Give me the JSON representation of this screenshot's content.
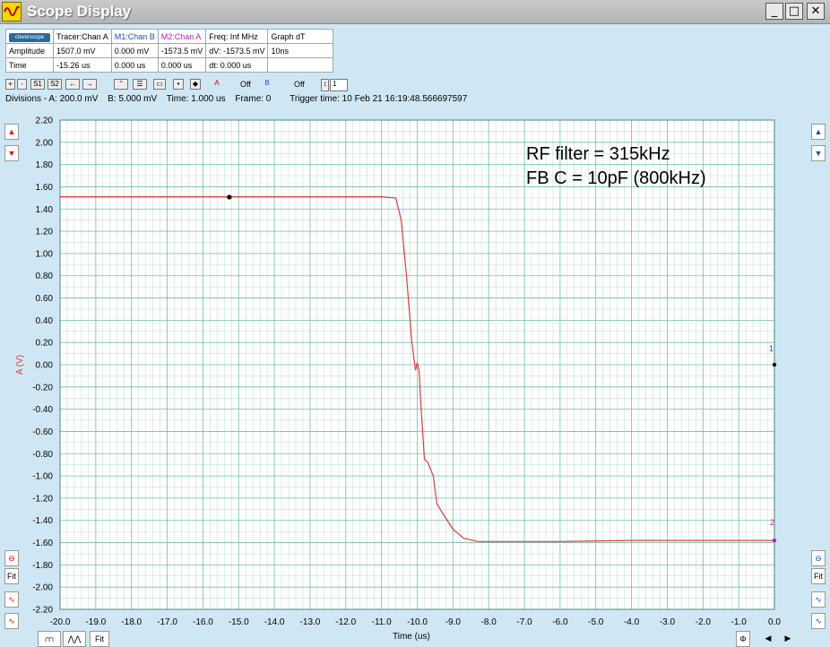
{
  "window": {
    "title": "Scope Display",
    "minimize_label": "_",
    "maximize_label": "□",
    "close_label": "✕"
  },
  "info_table": {
    "logo_text": "cleverscope",
    "headers": [
      "Tracer:Chan A",
      "M1:Chan B",
      "M2:Chan A",
      "Freq: Inf MHz",
      "Graph dT"
    ],
    "rows": [
      {
        "label": "Amplitude",
        "values": [
          "1507.0 mV",
          "0.000 mV",
          "-1573.5 mV",
          "dV: -1573.5 mV",
          "10ns"
        ]
      },
      {
        "label": "Time",
        "values": [
          "-15.26 us",
          "0.000 us",
          "0.000 us",
          "dt:  0.000 us",
          ""
        ]
      }
    ]
  },
  "toolbar": {
    "buttons": [
      "+",
      "-",
      "S1",
      "S2",
      "←",
      "→"
    ],
    "a_off_label": "Off",
    "b_off_label": "Off",
    "frame_field": "1"
  },
  "status": {
    "divisions": "Divisions -  A: 200.0 mV",
    "b": "B: 5.000 mV",
    "time": "Time: 1.000 us",
    "frame": "Frame: 0",
    "trigger": "Trigger time: 10 Feb 21 16:19:48.566697597"
  },
  "side": {
    "fit": "Fit"
  },
  "bottom": {
    "fit": "Fit"
  },
  "annotation": {
    "line1": "RF filter = 315kHz",
    "line2": "FB C = 10pF (800kHz)"
  },
  "markers": {
    "m1": "1",
    "m2": "2"
  },
  "colors": {
    "trace": "#e03a3a",
    "grid_major": "#6fbfa8",
    "grid_minor": "#b6dccf",
    "panel_bg": "#cfe7f5",
    "ylabel_color": "#e03a3a"
  },
  "chart_data": {
    "type": "line",
    "xlabel": "Time (us)",
    "ylabel": "A (V)",
    "xlim": [
      -20.0,
      0.0
    ],
    "ylim": [
      -2.2,
      2.2
    ],
    "xticks": [
      "-20.0",
      "-19.0",
      "-18.0",
      "-17.0",
      "-16.0",
      "-15.0",
      "-14.0",
      "-13.0",
      "-12.0",
      "-11.0",
      "-10.0",
      "-9.0",
      "-8.0",
      "-7.0",
      "-6.0",
      "-5.0",
      "-4.0",
      "-3.0",
      "-2.0",
      "-1.0",
      "0.0"
    ],
    "yticks": [
      "2.20",
      "2.00",
      "1.80",
      "1.60",
      "1.40",
      "1.20",
      "1.00",
      "0.80",
      "0.60",
      "0.40",
      "0.20",
      "0.00",
      "-0.20",
      "-0.40",
      "-0.60",
      "-0.80",
      "-1.00",
      "-1.20",
      "-1.40",
      "-1.60",
      "-1.80",
      "-2.00",
      "-2.20"
    ],
    "grid": true,
    "series": [
      {
        "x": [
          -20.0,
          -15.3,
          -11.0,
          -10.6,
          -10.45,
          -10.3,
          -10.15,
          -10.05,
          -10.0,
          -9.95,
          -9.9,
          -9.85,
          -9.8,
          -9.7,
          -9.55,
          -9.45,
          -9.3,
          -9.0,
          -8.7,
          -8.3,
          -7.5,
          -6.0,
          -4.0,
          -2.0,
          0.0
        ],
        "y": [
          1.51,
          1.51,
          1.51,
          1.5,
          1.3,
          0.8,
          0.2,
          -0.05,
          0.02,
          -0.05,
          -0.35,
          -0.6,
          -0.85,
          -0.88,
          -1.0,
          -1.25,
          -1.33,
          -1.48,
          -1.56,
          -1.59,
          -1.59,
          -1.59,
          -1.58,
          -1.58,
          -1.58
        ]
      }
    ],
    "tracer_point": {
      "x": -15.26,
      "y": 1.507
    }
  }
}
